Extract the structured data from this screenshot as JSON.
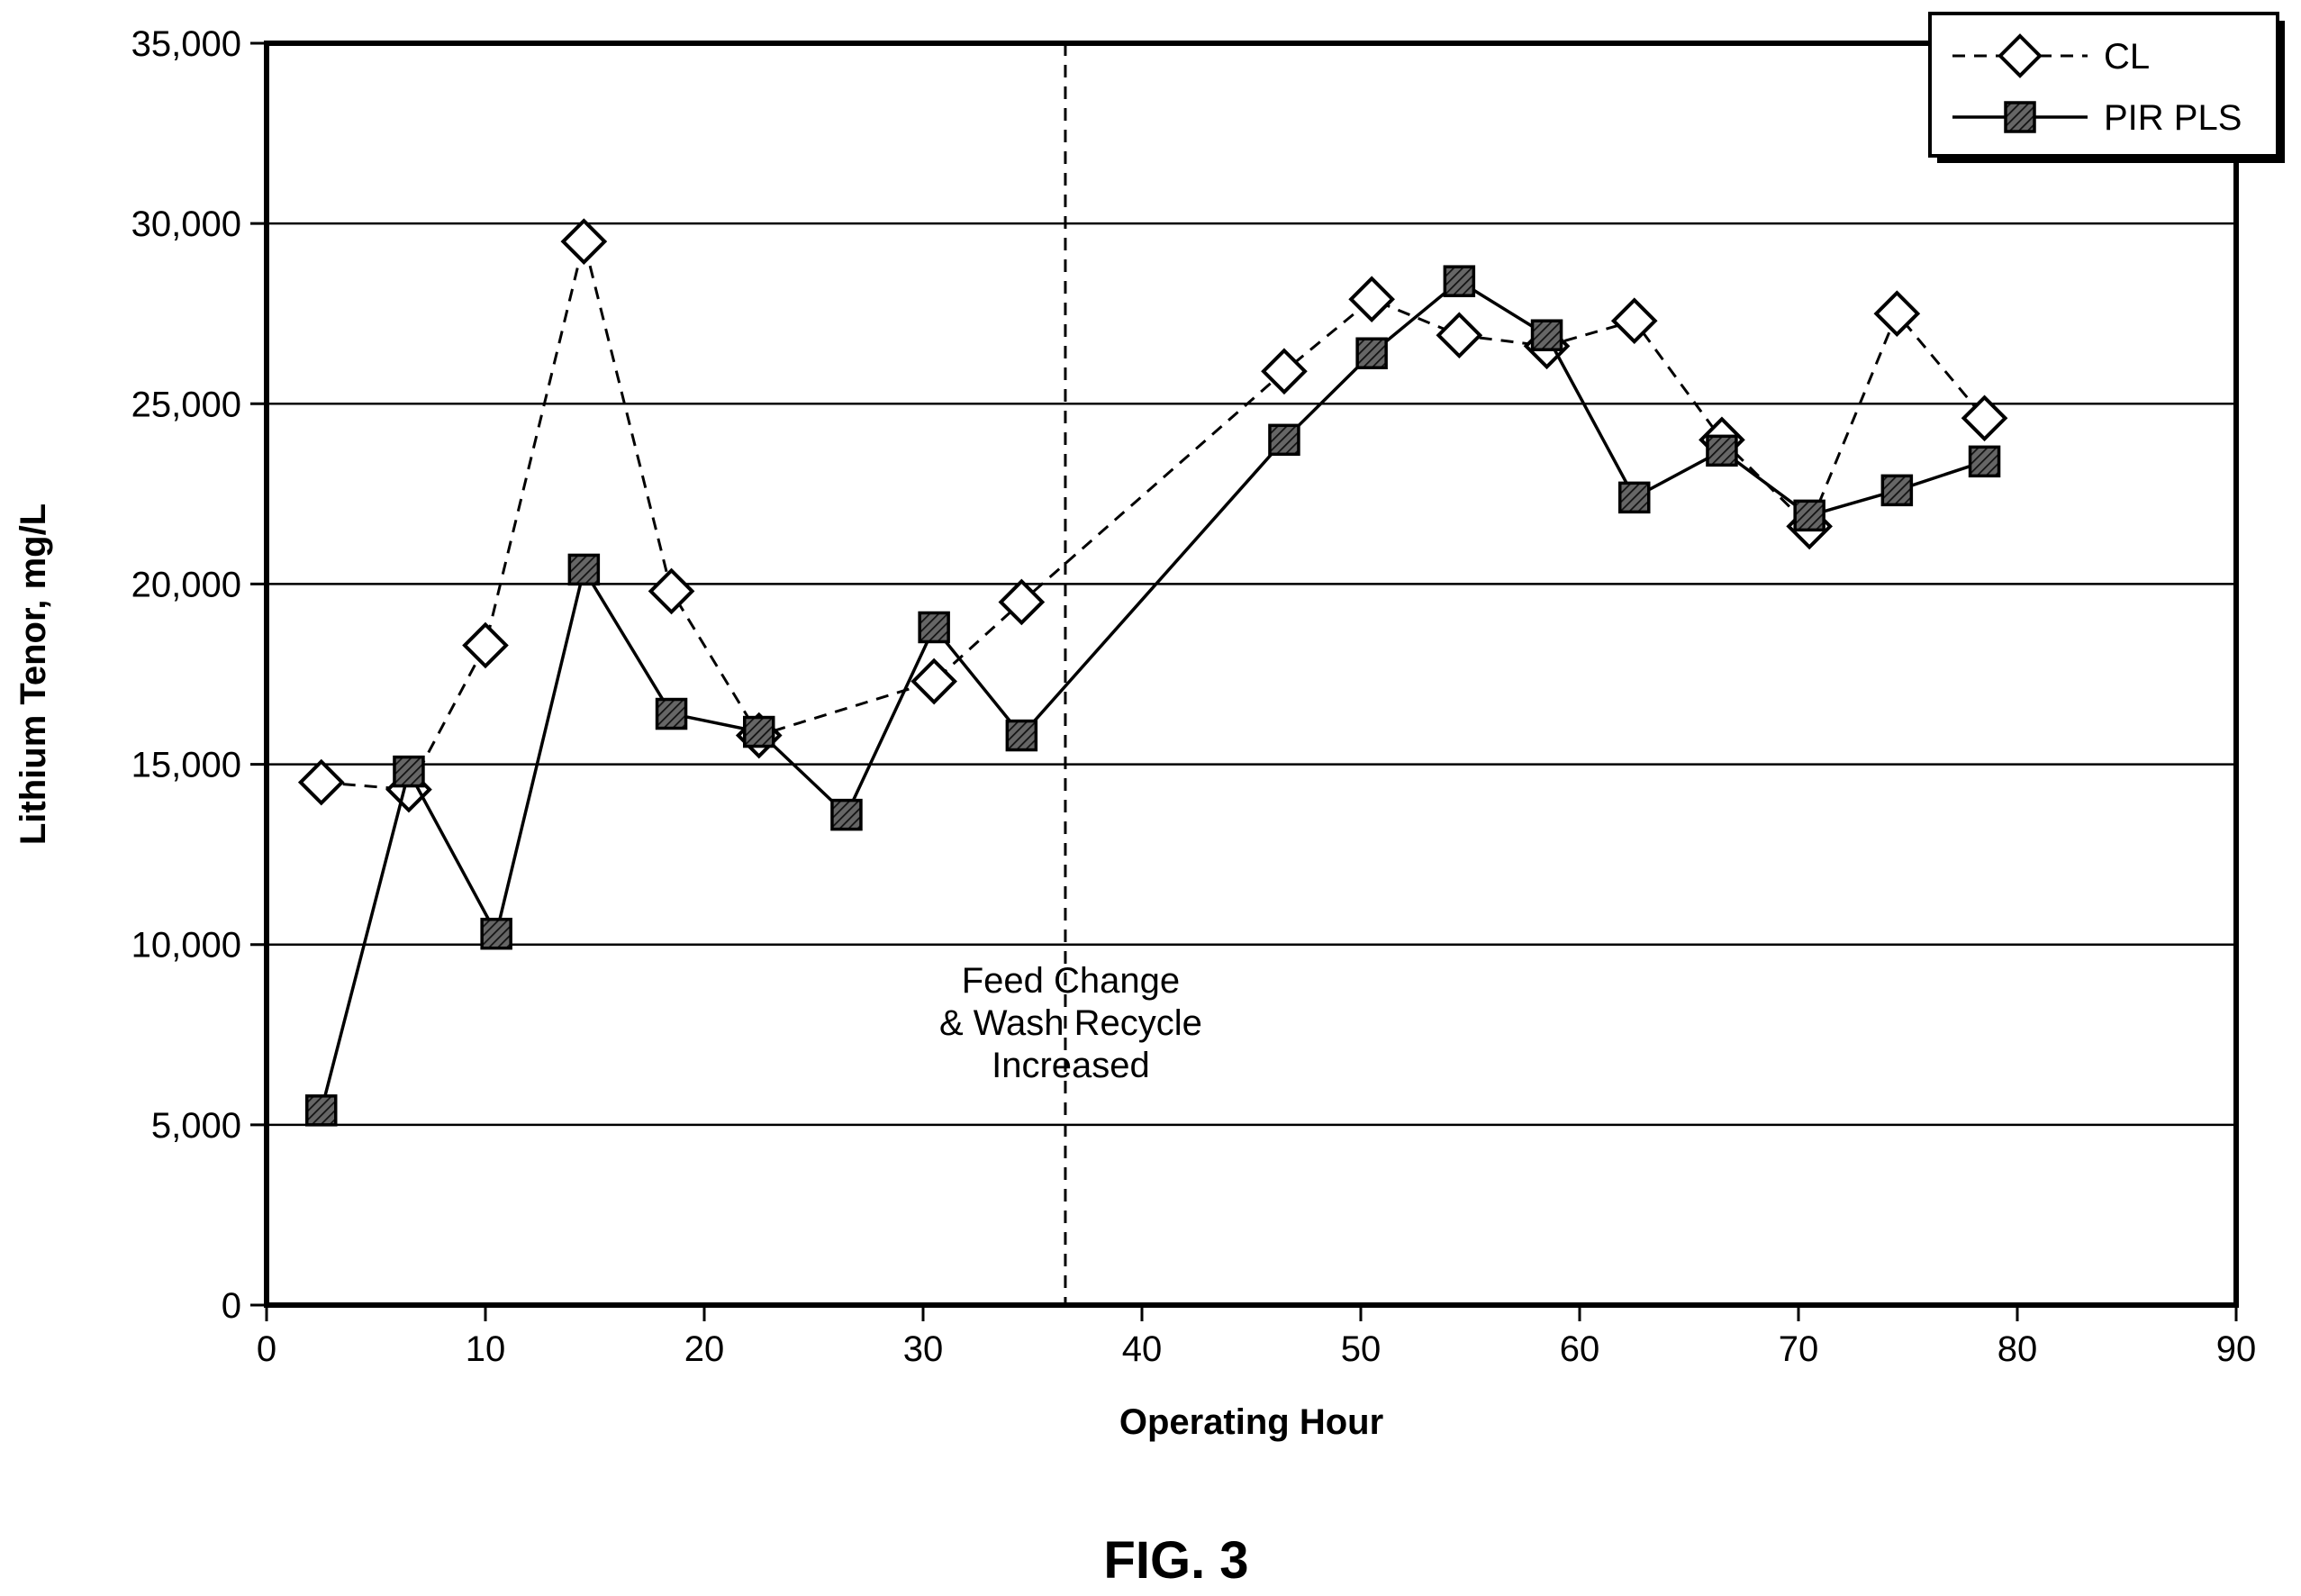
{
  "chart_data": {
    "type": "line",
    "xlabel": "Operating Hour",
    "ylabel": "Lithium Tenor, mg/L",
    "xlim": [
      0,
      90
    ],
    "ylim": [
      0,
      35000
    ],
    "x_ticks": [
      0,
      10,
      20,
      30,
      40,
      50,
      60,
      70,
      80,
      90
    ],
    "x_tick_labels": [
      "0",
      "10",
      "20",
      "30",
      "40",
      "50",
      "60",
      "70",
      "80",
      "90"
    ],
    "y_ticks": [
      0,
      5000,
      10000,
      15000,
      20000,
      25000,
      30000,
      35000
    ],
    "y_tick_labels": [
      "0",
      "5,000",
      "10,000",
      "15,000",
      "20,000",
      "25,000",
      "30,000",
      "35,000"
    ],
    "grid": "horizontal",
    "legend_position": "top-right",
    "series": [
      {
        "name": "CL",
        "line_style": "dashed",
        "marker": "diamond-open",
        "color": "#000000",
        "x": [
          2.5,
          6.5,
          10.0,
          14.5,
          18.5,
          22.5,
          30.5,
          34.5,
          46.5,
          50.5,
          54.5,
          58.5,
          62.5,
          66.5,
          70.5,
          74.5,
          78.5
        ],
        "values": [
          14500,
          14300,
          18300,
          29500,
          19800,
          15800,
          17300,
          19500,
          25900,
          27900,
          26900,
          26600,
          27300,
          24000,
          21600,
          27500,
          24600
        ]
      },
      {
        "name": "PIR PLS",
        "line_style": "solid",
        "marker": "square-hatched",
        "color": "#000000",
        "x": [
          2.5,
          6.5,
          10.5,
          14.5,
          18.5,
          22.5,
          26.5,
          30.5,
          34.5,
          46.5,
          50.5,
          54.5,
          58.5,
          62.5,
          66.5,
          70.5,
          74.5,
          78.5
        ],
        "values": [
          5400,
          14800,
          10300,
          20400,
          16400,
          15900,
          13600,
          18800,
          15800,
          24000,
          26400,
          28400,
          26900,
          22400,
          23700,
          21900,
          22600,
          23400
        ]
      }
    ],
    "vline": {
      "x": 36.5,
      "line_style": "dashed",
      "label_lines": [
        "Feed Change",
        "& Wash Recycle",
        "Increased"
      ]
    }
  },
  "caption": "FIG. 3"
}
